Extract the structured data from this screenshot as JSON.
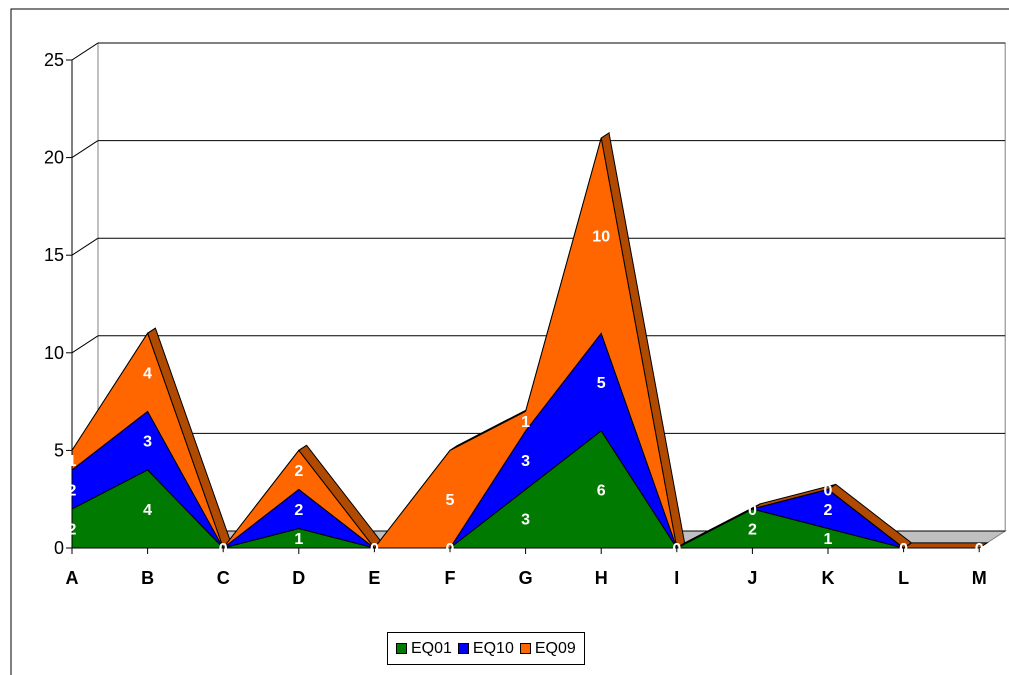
{
  "chart_data": {
    "type": "area",
    "stacked": true,
    "three_d": true,
    "categories": [
      "A",
      "B",
      "C",
      "D",
      "E",
      "F",
      "G",
      "H",
      "I",
      "J",
      "K",
      "L",
      "M"
    ],
    "series": [
      {
        "name": "EQ01",
        "color": "#007A00",
        "values": [
          2,
          4,
          0,
          1,
          0,
          0,
          3,
          6,
          0,
          2,
          1,
          0,
          0
        ]
      },
      {
        "name": "EQ10",
        "color": "#0000FF",
        "values": [
          2,
          3,
          0,
          2,
          0,
          0,
          3,
          5,
          0,
          0,
          2,
          0,
          0
        ]
      },
      {
        "name": "EQ09",
        "color": "#FF6600",
        "values": [
          1,
          4,
          0,
          2,
          0,
          5,
          1,
          10,
          0,
          0,
          0,
          0,
          0
        ]
      }
    ],
    "ylim": [
      0,
      25
    ],
    "yticks": [
      "0",
      "5",
      "10",
      "15",
      "20",
      "25"
    ],
    "grid": true,
    "legend": "bottom",
    "data_labels": {
      "EQ01": [
        "2",
        "4",
        "0",
        "1",
        "0",
        "0",
        "3",
        "6",
        "0",
        "2",
        "1",
        "0",
        "0"
      ],
      "EQ10": [
        "2",
        "3",
        "",
        "2",
        "",
        "",
        "3",
        "5",
        "",
        "0",
        "2",
        "",
        ""
      ],
      "EQ09": [
        "1",
        "4",
        "",
        "2",
        "",
        "5",
        "1",
        "10",
        "",
        "",
        "0",
        "",
        ""
      ]
    }
  }
}
